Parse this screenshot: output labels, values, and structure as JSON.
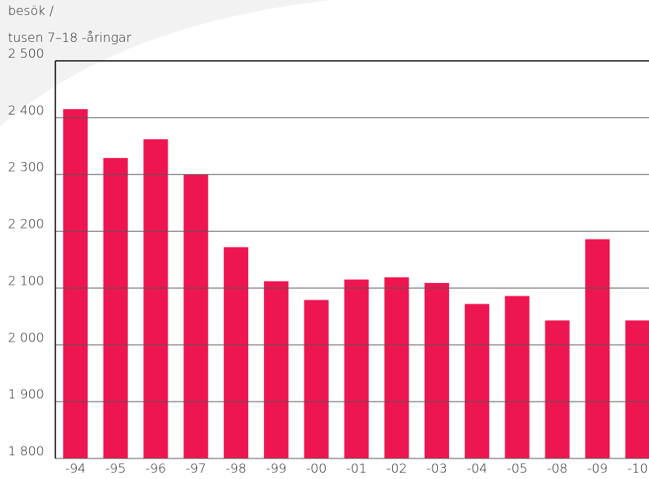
{
  "chart_data": {
    "type": "bar",
    "ylabel": [
      "besök /",
      "tusen 7–18 -åringar"
    ],
    "categories": [
      "-94",
      "-95",
      "-96",
      "-97",
      "-98",
      "-99",
      "-00",
      "-01",
      "-02",
      "-03",
      "-04",
      "-05",
      "-08",
      "-09",
      "-10"
    ],
    "values": [
      2415,
      2329,
      2362,
      2300,
      2172,
      2112,
      2079,
      2115,
      2119,
      2109,
      2072,
      2086,
      2043,
      2186,
      2043
    ],
    "color": "#ee1651",
    "ylim": [
      1800,
      2500
    ],
    "yticks": [
      {
        "value": 1800,
        "label": "1 800"
      },
      {
        "value": 1900,
        "label": "1 900"
      },
      {
        "value": 2000,
        "label": "2 000"
      },
      {
        "value": 2100,
        "label": "2 100"
      },
      {
        "value": 2200,
        "label": "2 200"
      },
      {
        "value": 2300,
        "label": "2 300"
      },
      {
        "value": 2400,
        "label": "2 400"
      },
      {
        "value": 2500,
        "label": "2 500"
      }
    ],
    "grid": true
  }
}
